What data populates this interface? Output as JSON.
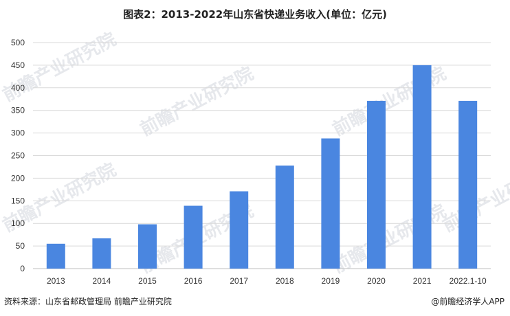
{
  "title": "图表2：2013-2022年山东省快递业务收入(单位：亿元)",
  "footer": {
    "source": "资料来源：山东省邮政管理局 前瞻产业研究院",
    "brand": "@前瞻经济学人APP"
  },
  "watermark": "前瞻产业研究院",
  "colors": {
    "bar": "#4a86e0",
    "grid": "#d9d9d9",
    "axis": "#bfbfbf"
  },
  "chart_data": {
    "type": "bar",
    "categories": [
      "2013",
      "2014",
      "2015",
      "2016",
      "2017",
      "2018",
      "2019",
      "2020",
      "2021",
      "2022.1-10"
    ],
    "values": [
      55,
      67,
      98,
      139,
      171,
      228,
      288,
      371,
      450,
      371
    ],
    "ylim": [
      0,
      500
    ],
    "yticks": [
      0,
      50,
      100,
      150,
      200,
      250,
      300,
      350,
      400,
      450,
      500
    ],
    "grid": true,
    "legend": "none"
  }
}
